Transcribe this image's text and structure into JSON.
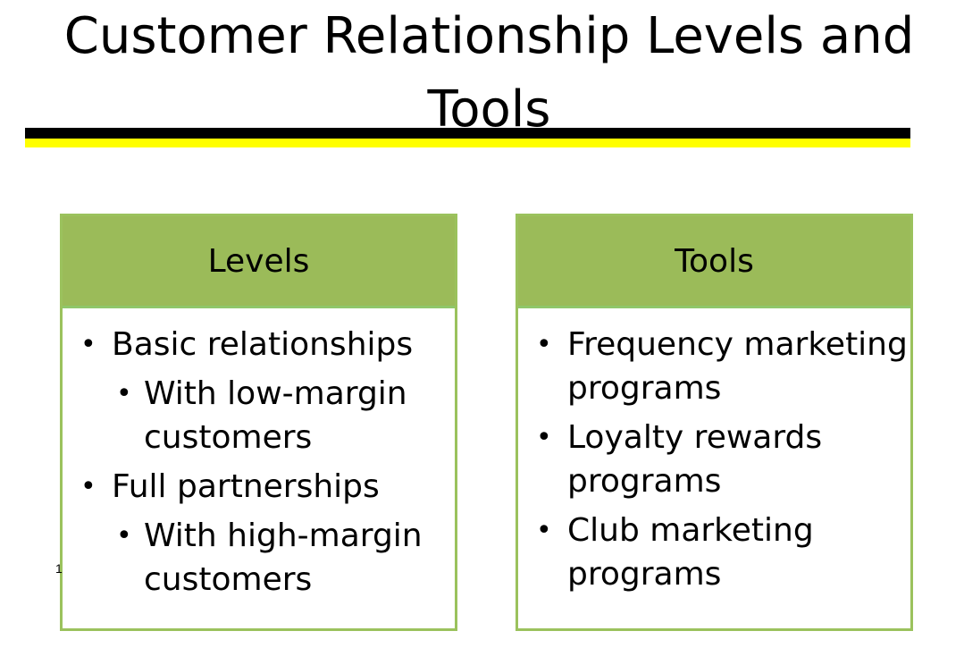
{
  "slide": {
    "title": "Customer Relationship Levels and Tools",
    "page_number": "1"
  },
  "levels": {
    "header": "Levels",
    "items": [
      {
        "label": "Basic relationships",
        "sub": "With low-margin customers"
      },
      {
        "label": "Full partnerships",
        "sub": "With high-margin customers"
      }
    ]
  },
  "tools": {
    "header": "Tools",
    "items": [
      {
        "label": "Frequency marketing programs"
      },
      {
        "label": "Loyalty rewards programs"
      },
      {
        "label": "Club marketing programs"
      }
    ]
  },
  "colors": {
    "header_fill": "#9bbb59",
    "border": "#9bc25d",
    "rule_black": "#000000",
    "rule_yellow": "#ffff00"
  }
}
